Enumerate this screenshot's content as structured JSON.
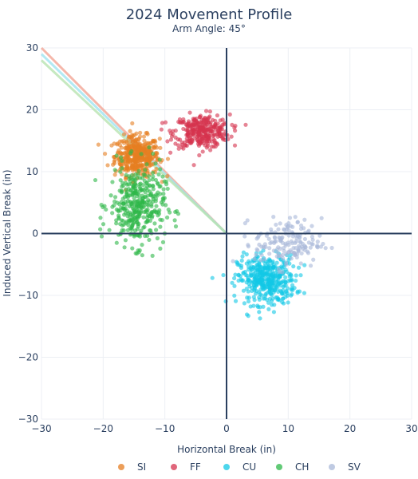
{
  "chart_data": {
    "type": "scatter",
    "title": "2024 Movement Profile",
    "subtitle": "Arm Angle: 45°",
    "xlabel": "Horizontal Break (in)",
    "ylabel": "Induced Vertical Break (in)",
    "xlim": [
      -30,
      30
    ],
    "ylim": [
      -30,
      30
    ],
    "xticks": [
      -30,
      -20,
      -10,
      0,
      10,
      20,
      30
    ],
    "yticks": [
      -30,
      -20,
      -10,
      0,
      10,
      20,
      30
    ],
    "xtick_labels": [
      "−30",
      "−20",
      "−10",
      "0",
      "10",
      "20",
      "30"
    ],
    "ytick_labels": [
      "−30",
      "−20",
      "−10",
      "0",
      "10",
      "20",
      "30"
    ],
    "legend_position": "bottom",
    "series": [
      {
        "name": "SI",
        "color": "#e67e22",
        "center": [
          -14.5,
          12.5
        ],
        "spread": [
          2.0,
          1.8
        ],
        "count": 420
      },
      {
        "name": "FF",
        "color": "#d6334f",
        "center": [
          -4,
          16.5
        ],
        "spread": [
          2.5,
          1.5
        ],
        "count": 320
      },
      {
        "name": "CU",
        "color": "#12c8e6",
        "center": [
          6.5,
          -7.5
        ],
        "spread": [
          2.6,
          2.2
        ],
        "count": 420
      },
      {
        "name": "CH",
        "color": "#2eb84a",
        "center": [
          -14.5,
          4.5
        ],
        "spread": [
          2.5,
          3.6
        ],
        "count": 380
      },
      {
        "name": "SV",
        "color": "#a9b8d8",
        "center": [
          10,
          -1.5
        ],
        "spread": [
          3.0,
          2.2
        ],
        "count": 160
      }
    ],
    "arm_angle_lines": [
      {
        "color": "#f2a595",
        "from": [
          0,
          0
        ],
        "to": [
          -30,
          30
        ]
      },
      {
        "color": "#9fe3f0",
        "from": [
          0,
          0
        ],
        "to": [
          -30,
          29
        ]
      },
      {
        "color": "#b8e4b0",
        "from": [
          0,
          0
        ],
        "to": [
          -30,
          28
        ]
      }
    ]
  }
}
